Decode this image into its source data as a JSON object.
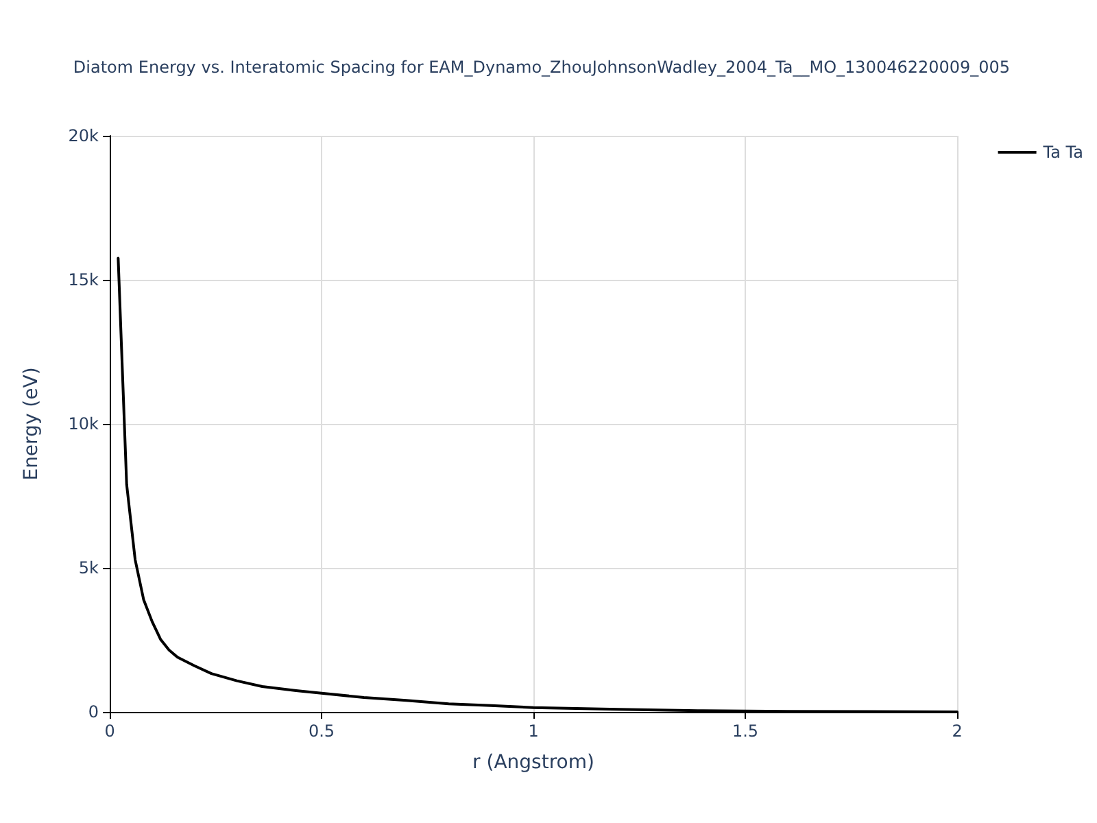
{
  "chart_data": {
    "type": "line",
    "title": "Diatom Energy vs. Interatomic Spacing for EAM_Dynamo_ZhouJohnsonWadley_2004_Ta__MO_130046220009_005",
    "xlabel": "r (Angstrom)",
    "ylabel": "Energy (eV)",
    "x": [
      0.02,
      0.04,
      0.06,
      0.08,
      0.1,
      0.12,
      0.14,
      0.16,
      0.2,
      0.24,
      0.3,
      0.36,
      0.44,
      0.5,
      0.6,
      0.7,
      0.8,
      0.9,
      1.0,
      1.2,
      1.4,
      1.6,
      1.8,
      2.0
    ],
    "series": [
      {
        "name": "Ta Ta",
        "color": "#000000",
        "values": [
          15750,
          7900,
          5290,
          3900,
          3140,
          2520,
          2150,
          1900,
          1600,
          1330,
          1080,
          880,
          740,
          650,
          500,
          400,
          280,
          220,
          150,
          90,
          40,
          20,
          10,
          0
        ]
      }
    ],
    "xlim": [
      0,
      2
    ],
    "xticks": [
      0,
      0.5,
      1,
      1.5,
      2
    ],
    "ylim": [
      0,
      20000
    ],
    "yticks": [
      {
        "value": 0,
        "label": "0"
      },
      {
        "value": 5000,
        "label": "5k"
      },
      {
        "value": 10000,
        "label": "10k"
      },
      {
        "value": 15000,
        "label": "15k"
      },
      {
        "value": 20000,
        "label": "20k"
      }
    ],
    "grid": true,
    "legend": "top right",
    "marker": "none",
    "line_style": "solid"
  }
}
